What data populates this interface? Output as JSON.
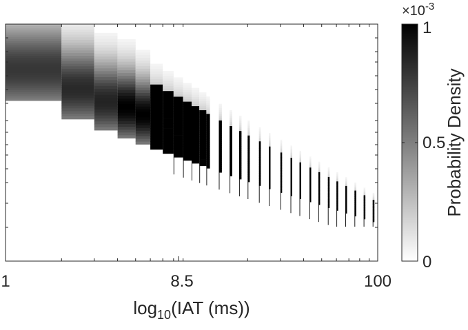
{
  "chart_data": {
    "type": "heatmap",
    "title": "",
    "xlabel": "log",
    "xlabel_subscript": "10",
    "xlabel_suffix": "(IAT (ms))",
    "ylabel": "",
    "x_scale": "log",
    "x_ticks": [
      1,
      8.5,
      100
    ],
    "x_tick_labels": [
      "1",
      "8.5",
      "100"
    ],
    "xlim": [
      1,
      100
    ],
    "colorbar": {
      "label": "Probability Density",
      "colormap": "gray-reversed",
      "exponent_prefix": "×10",
      "exponent": "-3",
      "ticks": [
        0,
        0.5,
        1
      ],
      "tick_labels": [
        "0",
        "0.5",
        "1"
      ],
      "range": [
        0,
        1
      ]
    },
    "grid": false,
    "legend": "none",
    "pattern": "probability density decreases along a diagonal band: short IAT bins dense at top, long IAT bins sparse at bottom",
    "colors": {
      "high": "#000000",
      "low": "#ffffff",
      "axis": "#262626"
    }
  }
}
